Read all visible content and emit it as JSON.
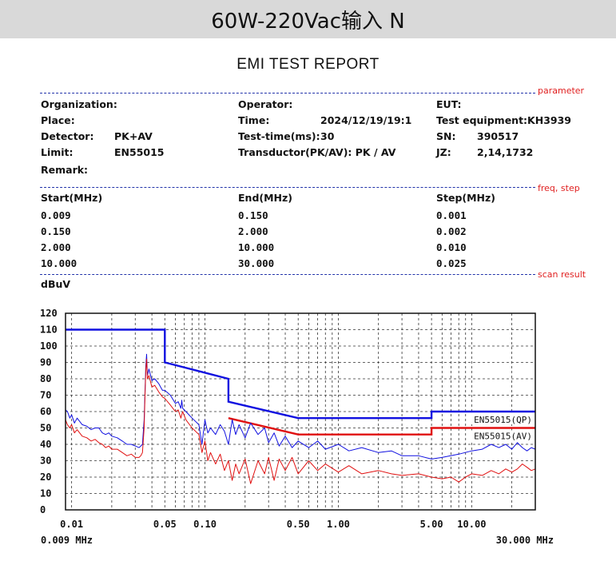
{
  "banner": {
    "title": "60W-220Vac输入 N"
  },
  "report": {
    "title": "EMI TEST REPORT"
  },
  "sections": {
    "parameter": "parameter",
    "freq_step": "freq, step",
    "scan_result": "scan result"
  },
  "params": {
    "organization_label": "Organization:",
    "operator_label": "Operator:",
    "eut_label": "EUT:",
    "place_label": "Place:",
    "time_label": "Time:",
    "time_value": "2024/12/19/19:1",
    "test_equipment": "Test equipment:KH3939",
    "detector_label": "Detector:",
    "detector_value": "PK+AV",
    "test_time_label": "Test-time(ms):",
    "test_time_value": "30",
    "sn_label": "SN:",
    "sn_value": "390517",
    "limit_label": "Limit:",
    "limit_value": "EN55015",
    "transductor": "Transductor(PK/AV): PK  /  AV",
    "jz_label": "JZ:",
    "jz_value": "2,14,1732",
    "remark_label": "Remark:"
  },
  "freq_table": {
    "headers": [
      "Start(MHz)",
      "End(MHz)",
      "Step(MHz)"
    ],
    "rows": [
      [
        "0.009",
        "0.150",
        "0.001"
      ],
      [
        "0.150",
        "2.000",
        "0.002"
      ],
      [
        "2.000",
        "10.000",
        "0.010"
      ],
      [
        "10.000",
        "30.000",
        "0.025"
      ]
    ]
  },
  "chart_data": {
    "type": "line",
    "ylabel": "dBuV",
    "x_scale": "log",
    "xlim": [
      0.009,
      30
    ],
    "ylim": [
      0,
      120
    ],
    "x_start_label": "0.009 MHz",
    "x_end_label": "30.000 MHz",
    "y_ticks": [
      0,
      10,
      20,
      30,
      40,
      50,
      60,
      70,
      80,
      90,
      100,
      110,
      120
    ],
    "x_tick_labels": [
      {
        "f": 0.01,
        "label": "0.01"
      },
      {
        "f": 0.05,
        "label": "0.05"
      },
      {
        "f": 0.1,
        "label": "0.10"
      },
      {
        "f": 0.5,
        "label": "0.50"
      },
      {
        "f": 1,
        "label": "1.00"
      },
      {
        "f": 5,
        "label": "5.00"
      },
      {
        "f": 10,
        "label": "10.00"
      }
    ],
    "grid": true,
    "colors": {
      "qp": "#1010e0",
      "av": "#e01010",
      "frame": "#111111"
    },
    "limits": [
      {
        "name": "EN55015(QP)",
        "color": "#1010e0",
        "points": [
          [
            0.009,
            110
          ],
          [
            0.05,
            110
          ],
          [
            0.05,
            90
          ],
          [
            0.15,
            80
          ],
          [
            0.15,
            66
          ],
          [
            0.5,
            56
          ],
          [
            5,
            56
          ],
          [
            5,
            60
          ],
          [
            30,
            60
          ]
        ]
      },
      {
        "name": "EN55015(AV)",
        "color": "#e01010",
        "points": [
          [
            0.15,
            56
          ],
          [
            0.5,
            46
          ],
          [
            5,
            46
          ],
          [
            5,
            50
          ],
          [
            30,
            50
          ]
        ]
      }
    ],
    "series": [
      {
        "color": "#1010e0",
        "points": [
          [
            0.009,
            61
          ],
          [
            0.0093,
            60
          ],
          [
            0.0097,
            56
          ],
          [
            0.01,
            58
          ],
          [
            0.0105,
            53
          ],
          [
            0.011,
            56
          ],
          [
            0.012,
            52
          ],
          [
            0.013,
            51
          ],
          [
            0.014,
            49
          ],
          [
            0.015,
            50
          ],
          [
            0.016,
            50
          ],
          [
            0.017,
            47
          ],
          [
            0.018,
            46
          ],
          [
            0.019,
            47
          ],
          [
            0.02,
            45
          ],
          [
            0.022,
            44
          ],
          [
            0.024,
            42
          ],
          [
            0.026,
            40
          ],
          [
            0.028,
            40
          ],
          [
            0.03,
            39
          ],
          [
            0.032,
            38
          ],
          [
            0.033,
            39
          ],
          [
            0.034,
            40
          ],
          [
            0.035,
            55
          ],
          [
            0.0355,
            72
          ],
          [
            0.036,
            88
          ],
          [
            0.0365,
            95
          ],
          [
            0.037,
            82
          ],
          [
            0.038,
            86
          ],
          [
            0.04,
            79
          ],
          [
            0.042,
            80
          ],
          [
            0.045,
            77
          ],
          [
            0.048,
            73
          ],
          [
            0.05,
            73
          ],
          [
            0.055,
            70
          ],
          [
            0.06,
            65
          ],
          [
            0.063,
            66
          ],
          [
            0.066,
            62
          ],
          [
            0.067,
            67
          ],
          [
            0.068,
            62
          ],
          [
            0.072,
            60
          ],
          [
            0.08,
            56
          ],
          [
            0.09,
            52
          ],
          [
            0.095,
            40
          ],
          [
            0.1,
            55
          ],
          [
            0.105,
            47
          ],
          [
            0.11,
            50
          ],
          [
            0.12,
            46
          ],
          [
            0.13,
            52
          ],
          [
            0.14,
            48
          ],
          [
            0.15,
            40
          ],
          [
            0.16,
            55
          ],
          [
            0.17,
            46
          ],
          [
            0.18,
            52
          ],
          [
            0.2,
            44
          ],
          [
            0.22,
            53
          ],
          [
            0.25,
            46
          ],
          [
            0.28,
            50
          ],
          [
            0.3,
            41
          ],
          [
            0.33,
            47
          ],
          [
            0.36,
            39
          ],
          [
            0.4,
            45
          ],
          [
            0.45,
            38
          ],
          [
            0.5,
            42
          ],
          [
            0.6,
            38
          ],
          [
            0.7,
            42
          ],
          [
            0.8,
            37
          ],
          [
            1,
            40
          ],
          [
            1.2,
            36
          ],
          [
            1.5,
            38
          ],
          [
            2,
            35
          ],
          [
            2.5,
            36
          ],
          [
            3,
            33
          ],
          [
            4,
            33
          ],
          [
            5,
            31
          ],
          [
            6,
            32
          ],
          [
            8,
            34
          ],
          [
            10,
            36
          ],
          [
            12,
            37
          ],
          [
            14,
            40
          ],
          [
            16,
            38
          ],
          [
            18,
            40
          ],
          [
            20,
            37
          ],
          [
            22,
            41
          ],
          [
            24,
            38
          ],
          [
            26,
            36
          ],
          [
            28,
            38
          ],
          [
            30,
            37
          ]
        ]
      },
      {
        "color": "#e01010",
        "points": [
          [
            0.009,
            55
          ],
          [
            0.0093,
            52
          ],
          [
            0.0097,
            50
          ],
          [
            0.01,
            52
          ],
          [
            0.0105,
            47
          ],
          [
            0.011,
            49
          ],
          [
            0.012,
            45
          ],
          [
            0.013,
            44
          ],
          [
            0.014,
            42
          ],
          [
            0.015,
            43
          ],
          [
            0.016,
            41
          ],
          [
            0.017,
            40
          ],
          [
            0.018,
            38
          ],
          [
            0.019,
            39
          ],
          [
            0.02,
            37
          ],
          [
            0.022,
            37
          ],
          [
            0.024,
            35
          ],
          [
            0.026,
            33
          ],
          [
            0.028,
            34
          ],
          [
            0.03,
            32
          ],
          [
            0.032,
            32
          ],
          [
            0.033,
            33
          ],
          [
            0.034,
            35
          ],
          [
            0.035,
            50
          ],
          [
            0.0355,
            70
          ],
          [
            0.036,
            85
          ],
          [
            0.0365,
            92
          ],
          [
            0.037,
            80
          ],
          [
            0.038,
            82
          ],
          [
            0.04,
            75
          ],
          [
            0.042,
            76
          ],
          [
            0.045,
            72
          ],
          [
            0.048,
            69
          ],
          [
            0.05,
            68
          ],
          [
            0.055,
            64
          ],
          [
            0.06,
            60
          ],
          [
            0.063,
            61
          ],
          [
            0.066,
            56
          ],
          [
            0.068,
            60
          ],
          [
            0.072,
            55
          ],
          [
            0.08,
            50
          ],
          [
            0.09,
            46
          ],
          [
            0.095,
            35
          ],
          [
            0.1,
            42
          ],
          [
            0.105,
            30
          ],
          [
            0.11,
            35
          ],
          [
            0.12,
            28
          ],
          [
            0.13,
            34
          ],
          [
            0.14,
            24
          ],
          [
            0.15,
            30
          ],
          [
            0.16,
            18
          ],
          [
            0.17,
            28
          ],
          [
            0.18,
            22
          ],
          [
            0.2,
            31
          ],
          [
            0.22,
            16
          ],
          [
            0.25,
            30
          ],
          [
            0.28,
            22
          ],
          [
            0.3,
            32
          ],
          [
            0.33,
            18
          ],
          [
            0.36,
            31
          ],
          [
            0.4,
            24
          ],
          [
            0.45,
            32
          ],
          [
            0.5,
            22
          ],
          [
            0.6,
            30
          ],
          [
            0.7,
            24
          ],
          [
            0.8,
            28
          ],
          [
            1,
            23
          ],
          [
            1.2,
            27
          ],
          [
            1.5,
            22
          ],
          [
            2,
            24
          ],
          [
            2.5,
            22
          ],
          [
            3,
            21
          ],
          [
            4,
            22
          ],
          [
            5,
            20
          ],
          [
            6,
            19
          ],
          [
            7,
            20
          ],
          [
            8,
            17
          ],
          [
            9,
            20
          ],
          [
            10,
            22
          ],
          [
            12,
            21
          ],
          [
            14,
            24
          ],
          [
            16,
            22
          ],
          [
            18,
            25
          ],
          [
            20,
            23
          ],
          [
            22,
            25
          ],
          [
            24,
            28
          ],
          [
            26,
            26
          ],
          [
            28,
            24
          ],
          [
            30,
            25
          ]
        ]
      }
    ]
  }
}
